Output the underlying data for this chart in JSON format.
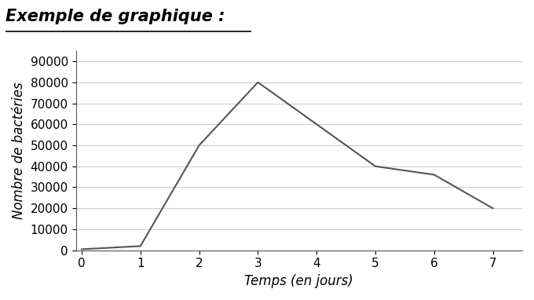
{
  "title": "Exemple de graphique :",
  "xlabel": "Temps (en jours)",
  "ylabel": "Nombre de bactéries",
  "x": [
    0,
    1,
    2,
    3,
    4,
    5,
    6,
    7
  ],
  "y": [
    500,
    2000,
    50000,
    80000,
    60000,
    40000,
    36000,
    20000
  ],
  "xlim": [
    -0.1,
    7.5
  ],
  "ylim": [
    0,
    95000
  ],
  "yticks": [
    0,
    10000,
    20000,
    30000,
    40000,
    50000,
    60000,
    70000,
    80000,
    90000
  ],
  "xticks": [
    0,
    1,
    2,
    3,
    4,
    5,
    6,
    7
  ],
  "line_color": "#555555",
  "line_width": 1.5,
  "background_color": "#ffffff",
  "grid_color": "#cccccc",
  "title_fontsize": 15,
  "axis_label_fontsize": 12,
  "tick_fontsize": 11
}
